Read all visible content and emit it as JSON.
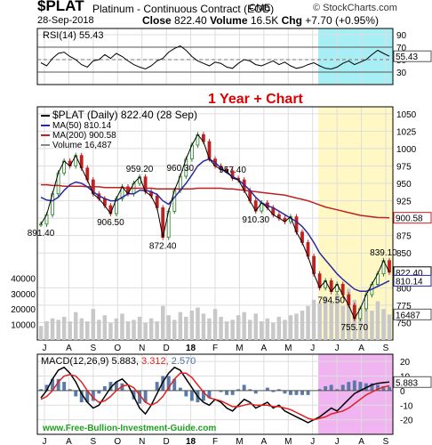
{
  "header": {
    "ticker": "$PLAT",
    "name": "Platinum - Continuous Contract (EOD)",
    "exchange": "CME",
    "brand": "© StockCharts.com",
    "date": "28-Sep-2018",
    "close_label": "Close",
    "close": "822.40",
    "volume_label": "Volume",
    "volume": "16.5K",
    "chg_label": "Chg",
    "chg": "+7.70 (+0.95%)"
  },
  "watermark": "www.Free-Bullion-Investment-Guide.com",
  "annotation": "1 Year + Chart",
  "colors": {
    "highlight_yellow": "#fff8c4",
    "highlight_cyan": "#a8eef5",
    "highlight_magenta": "#f0b4f0",
    "annotation_red": "#e00000",
    "ma50": "#2a2aa0",
    "ma200": "#c02020",
    "price": "#000000",
    "up": "#208020",
    "down": "#c02020",
    "watermark": "#20a020",
    "signal": "#e02020",
    "volume": "#c8c8c8",
    "rsi_band": "#c8e8c8"
  },
  "chart_data": [
    {
      "type": "line",
      "title": "RSI(14) 55.43",
      "series_name": "RSI(14)",
      "last_value": 55.43,
      "ylim": [
        10,
        100
      ],
      "yticks": [
        90,
        70,
        50,
        30
      ],
      "overbought": 70,
      "oversold": 30,
      "values": [
        45,
        40,
        52,
        60,
        62,
        55,
        50,
        42,
        38,
        48,
        50,
        58,
        52,
        60,
        55,
        48,
        42,
        38,
        35,
        40,
        48,
        52,
        62,
        68,
        72,
        65,
        55,
        48,
        44,
        40,
        46,
        44,
        38,
        36,
        44,
        50,
        48,
        42,
        40,
        44,
        48,
        42,
        46,
        40,
        36,
        38,
        42,
        45,
        40,
        36,
        35,
        38,
        44,
        48,
        42,
        46,
        50,
        58,
        65,
        60,
        55.43
      ]
    },
    {
      "type": "line",
      "title": "$PLAT (Daily) 822.40 (28 Sep)",
      "legend": [
        {
          "name": "$PLAT (Daily) 822.40 (28 Sep)"
        },
        {
          "name": "MA(50) 810.14"
        },
        {
          "name": "MA(200) 900.58"
        },
        {
          "name": "Volume 16,487"
        }
      ],
      "x_ticks": [
        "J",
        "A",
        "S",
        "O",
        "N",
        "D",
        "18",
        "F",
        "M",
        "A",
        "M",
        "J",
        "J",
        "A",
        "S"
      ],
      "ylim": [
        725,
        1060
      ],
      "yticks": [
        1050,
        1025,
        1000,
        975,
        950,
        925,
        900,
        875,
        850,
        800,
        775,
        750
      ],
      "series": [
        {
          "name": "$PLAT",
          "values": [
            891.4,
            905,
            935,
            965,
            982,
            975,
            990,
            972,
            955,
            935,
            928,
            918,
            906.5,
            928,
            945,
            935,
            950,
            959.2,
            938,
            932,
            915,
            872.4,
            910,
            940,
            960.3,
            985,
            1005,
            1020,
            1010,
            985,
            975,
            970,
            968,
            957.4,
            955,
            940,
            925,
            910.3,
            922,
            915,
            905,
            900,
            895,
            902,
            880,
            865,
            845,
            820,
            800,
            810,
            794.5,
            805,
            790,
            775,
            755.7,
            770,
            790,
            805,
            820,
            839.1,
            822.4
          ]
        },
        {
          "name": "MA(50)",
          "values": [
            930,
            926,
            925,
            930,
            940,
            948,
            952,
            950,
            945,
            938,
            932,
            928,
            925,
            925,
            930,
            935,
            935,
            940,
            940,
            938,
            934,
            925,
            920,
            930,
            940,
            950,
            962,
            975,
            982,
            985,
            980,
            972,
            965,
            960,
            955,
            948,
            940,
            930,
            922,
            918,
            915,
            910,
            905,
            900,
            895,
            888,
            878,
            865,
            850,
            840,
            830,
            820,
            812,
            805,
            798,
            795,
            795,
            798,
            802,
            806,
            810.14
          ]
        },
        {
          "name": "MA(200)",
          "values": [
            948,
            948,
            947,
            947,
            946,
            946,
            946,
            946,
            945,
            945,
            945,
            944,
            944,
            944,
            944,
            943,
            943,
            943,
            943,
            943,
            942,
            942,
            942,
            942,
            942,
            942,
            942,
            943,
            943,
            943,
            943,
            943,
            942,
            942,
            941,
            940,
            939,
            938,
            937,
            936,
            935,
            934,
            933,
            931,
            929,
            927,
            925,
            922,
            919,
            916,
            914,
            912,
            910,
            908,
            906,
            904,
            903,
            902,
            901,
            900.8,
            900.58
          ]
        }
      ],
      "point_labels": [
        {
          "text": "891.40",
          "index": 0,
          "value": 891.4
        },
        {
          "text": "906.50",
          "index": 12,
          "value": 906.5
        },
        {
          "text": "959.20",
          "index": 17,
          "value": 959.2
        },
        {
          "text": "872.40",
          "index": 21,
          "value": 872.4
        },
        {
          "text": "960.30",
          "index": 24,
          "value": 960.3
        },
        {
          "text": "957.40",
          "index": 33,
          "value": 957.4
        },
        {
          "text": "910.30",
          "index": 37,
          "value": 910.3
        },
        {
          "text": "794.50",
          "index": 50,
          "value": 794.5
        },
        {
          "text": "755.70",
          "index": 54,
          "value": 755.7
        },
        {
          "text": "839.10",
          "index": 59,
          "value": 839.1
        }
      ],
      "last_value_tags": [
        {
          "text": "900.58",
          "value": 900.58,
          "series": "MA(200)"
        },
        {
          "text": "822.40",
          "value": 822.4,
          "series": "$PLAT"
        },
        {
          "text": "810.14",
          "value": 810.14,
          "series": "MA(50)"
        }
      ]
    },
    {
      "type": "bar",
      "title": "Volume 16,487",
      "ylim": [
        0,
        46000
      ],
      "yticks": [
        40000,
        30000,
        20000,
        10000
      ],
      "last_value_tag": "16487",
      "values": [
        9000,
        12000,
        14000,
        13000,
        15000,
        12000,
        18000,
        14000,
        12000,
        20000,
        13000,
        16000,
        11000,
        14000,
        17000,
        12000,
        13000,
        15000,
        11000,
        14000,
        12000,
        22000,
        16000,
        13000,
        18000,
        15000,
        19000,
        21000,
        17000,
        14000,
        20000,
        15000,
        12000,
        13000,
        16000,
        18000,
        13000,
        17000,
        12000,
        14000,
        11000,
        15000,
        13000,
        16000,
        17000,
        19000,
        22000,
        26000,
        24000,
        28000,
        25000,
        30000,
        22000,
        33000,
        26000,
        21000,
        24000,
        19000,
        25000,
        20000,
        16487
      ]
    },
    {
      "type": "line",
      "title": "MACD(12,26,9) 5.883, 3.312, 2.570",
      "legend": [
        {
          "name": "MACD(12,26,9)",
          "value": "5.883"
        },
        {
          "name": "Signal",
          "value": "3.312"
        },
        {
          "name": "Histogram",
          "value": "2.570"
        }
      ],
      "ylim": [
        -30,
        25
      ],
      "yticks": [
        20,
        10,
        0,
        -10,
        -20
      ],
      "last_value_tag": "5.883",
      "series": [
        {
          "name": "MACD",
          "values": [
            -5,
            0,
            8,
            14,
            16,
            12,
            6,
            -2,
            -8,
            -12,
            -10,
            -4,
            2,
            6,
            8,
            4,
            -4,
            -12,
            -16,
            -10,
            -2,
            6,
            12,
            16,
            14,
            8,
            2,
            -4,
            -8,
            -10,
            -6,
            -8,
            -12,
            -14,
            -10,
            -6,
            -8,
            -12,
            -10,
            -8,
            -12,
            -10,
            -14,
            -16,
            -18,
            -20,
            -22,
            -20,
            -18,
            -15,
            -12,
            -14,
            -10,
            -6,
            -2,
            0,
            2,
            4,
            5,
            5.5,
            5.883
          ]
        },
        {
          "name": "Signal",
          "values": [
            -6,
            -4,
            0,
            6,
            10,
            11,
            10,
            6,
            0,
            -5,
            -8,
            -7,
            -4,
            0,
            3,
            4,
            2,
            -3,
            -8,
            -10,
            -8,
            -4,
            2,
            8,
            12,
            12,
            9,
            4,
            -1,
            -5,
            -6,
            -7,
            -9,
            -11,
            -11,
            -10,
            -9,
            -10,
            -10,
            -10,
            -11,
            -11,
            -12,
            -13,
            -15,
            -17,
            -19,
            -20,
            -19,
            -18,
            -16,
            -15,
            -14,
            -12,
            -9,
            -6,
            -3,
            -1,
            1,
            2.5,
            3.312
          ]
        },
        {
          "name": "Histogram",
          "values": [
            1,
            4,
            8,
            8,
            6,
            1,
            -4,
            -8,
            -8,
            -7,
            -2,
            3,
            6,
            6,
            5,
            0,
            -6,
            -9,
            -8,
            0,
            6,
            10,
            10,
            8,
            2,
            -4,
            -7,
            -8,
            -7,
            -5,
            0,
            -1,
            -3,
            -3,
            1,
            4,
            1,
            -2,
            0,
            2,
            -1,
            1,
            -2,
            -3,
            -3,
            -3,
            -3,
            0,
            1,
            3,
            4,
            1,
            4,
            6,
            7,
            6,
            5,
            5,
            4,
            3,
            2.57
          ]
        }
      ]
    }
  ]
}
